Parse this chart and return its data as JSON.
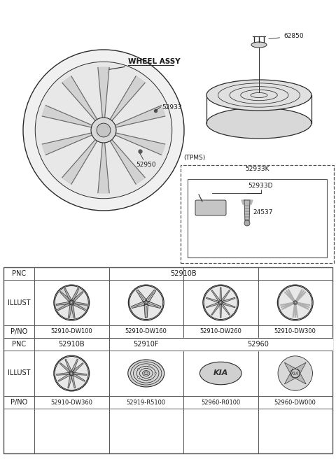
{
  "bg_color": "#ffffff",
  "line_color": "#2a2a2a",
  "text_color": "#1a1a1a",
  "dark_gray": "#555555",
  "mid_gray": "#888888",
  "light_gray": "#cccccc",
  "diagram": {
    "wheel_label": "WHEEL ASSY",
    "part_52933": "52933",
    "part_52950": "52950",
    "part_62850": "62850",
    "tpms_label": "(TPMS)",
    "part_52933K": "52933K",
    "part_52933D": "52933D",
    "part_24537": "24537"
  },
  "table": {
    "pnc_row1": "52910B",
    "pno_row1": [
      "52910-DW100",
      "52910-DW160",
      "52910-DW260",
      "52910-DW300"
    ],
    "pnc_row2_c1": "52910B",
    "pnc_row2_c2": "52910F",
    "pnc_row2_c34": "52960",
    "pno_row2": [
      "52910-DW360",
      "52919-R5100",
      "52960-R0100",
      "52960-DW000"
    ]
  }
}
